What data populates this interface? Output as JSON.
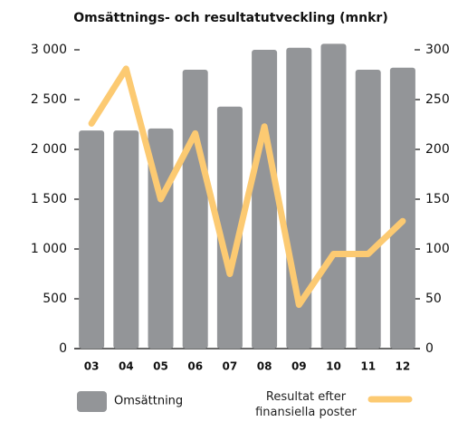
{
  "chart_data": {
    "type": "bar",
    "title": "Omsättnings- och resultatutveckling (mnkr)",
    "categories": [
      "03",
      "04",
      "05",
      "06",
      "07",
      "08",
      "09",
      "10",
      "11",
      "12"
    ],
    "series": [
      {
        "name": "Omsättning",
        "type": "bar",
        "color": "#939598",
        "values": [
          2190,
          2190,
          2210,
          2800,
          2430,
          3000,
          3020,
          3060,
          2800,
          2820
        ]
      },
      {
        "name": "Resultat efter finansiella poster",
        "type": "line",
        "axis": "y2",
        "color": "#fcca72",
        "values": [
          226,
          281,
          150,
          216,
          75,
          223,
          44,
          95,
          95,
          128
        ]
      }
    ],
    "ylim": [
      0,
      3000
    ],
    "yticks": [
      {
        "value": 0,
        "label": "0"
      },
      {
        "value": 500,
        "label": "500"
      },
      {
        "value": 1000,
        "label": "1 000"
      },
      {
        "value": 1500,
        "label": "1 500"
      },
      {
        "value": 2000,
        "label": "2 000"
      },
      {
        "value": 2500,
        "label": "2 500"
      },
      {
        "value": 3000,
        "label": "3 000"
      }
    ],
    "y2lim": [
      0,
      300
    ],
    "y2ticks": [
      0,
      50,
      100,
      150,
      200,
      250,
      300
    ],
    "grid": false
  }
}
